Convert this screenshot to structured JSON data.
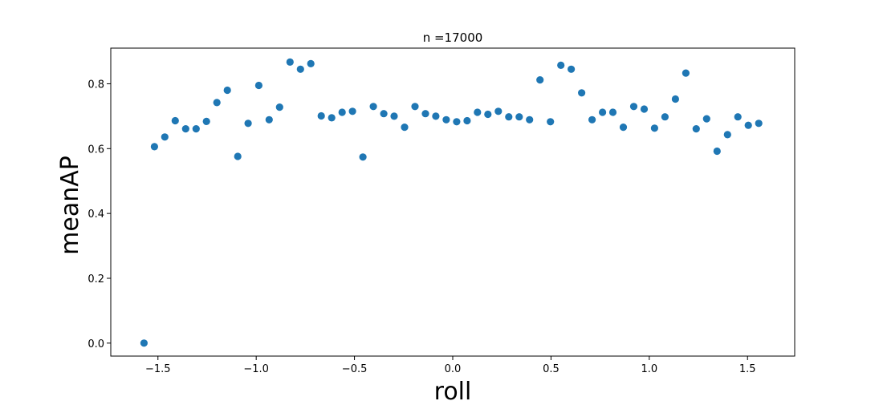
{
  "chart_data": {
    "type": "scatter",
    "title": "n =17000",
    "xlabel": "roll",
    "ylabel": "meanAP",
    "xlim": [
      -1.74,
      1.74
    ],
    "ylim": [
      -0.04,
      0.91
    ],
    "xticks": [
      -1.5,
      -1.0,
      -0.5,
      0.0,
      0.5,
      1.0,
      1.5
    ],
    "xtick_labels": [
      "−1.5",
      "−1.0",
      "−0.5",
      "0.0",
      "0.5",
      "1.0",
      "1.5"
    ],
    "yticks": [
      0.0,
      0.2,
      0.4,
      0.6,
      0.8
    ],
    "ytick_labels": [
      "0.0",
      "0.2",
      "0.4",
      "0.6",
      "0.8"
    ],
    "grid": false,
    "marker_color": "#1f77b4",
    "series": [
      {
        "x": [
          -1.571,
          -1.518,
          -1.465,
          -1.412,
          -1.359,
          -1.306,
          -1.253,
          -1.2,
          -1.147,
          -1.094,
          -1.041,
          -0.987,
          -0.934,
          -0.881,
          -0.828,
          -0.775,
          -0.722,
          -0.669,
          -0.616,
          -0.563,
          -0.51,
          -0.457,
          -0.404,
          -0.351,
          -0.298,
          -0.245,
          -0.192,
          -0.139,
          -0.086,
          -0.033,
          0.02,
          0.073,
          0.126,
          0.179,
          0.232,
          0.285,
          0.338,
          0.391,
          0.444,
          0.497,
          0.55,
          0.603,
          0.656,
          0.709,
          0.762,
          0.815,
          0.868,
          0.921,
          0.974,
          1.027,
          1.08,
          1.133,
          1.186,
          1.239,
          1.292,
          1.345,
          1.398,
          1.451,
          1.504,
          1.557
        ],
        "y": [
          0.0,
          0.606,
          0.636,
          0.686,
          0.661,
          0.661,
          0.684,
          0.742,
          0.78,
          0.576,
          0.678,
          0.795,
          0.689,
          0.728,
          0.867,
          0.845,
          0.862,
          0.701,
          0.695,
          0.712,
          0.715,
          0.574,
          0.73,
          0.708,
          0.7,
          0.666,
          0.73,
          0.708,
          0.7,
          0.689,
          0.683,
          0.686,
          0.712,
          0.706,
          0.715,
          0.698,
          0.698,
          0.689,
          0.812,
          0.683,
          0.857,
          0.845,
          0.772,
          0.689,
          0.712,
          0.712,
          0.666,
          0.73,
          0.722,
          0.663,
          0.698,
          0.753,
          0.833,
          0.661,
          0.692,
          0.592,
          0.643,
          0.698,
          0.672,
          0.678
        ]
      }
    ]
  }
}
